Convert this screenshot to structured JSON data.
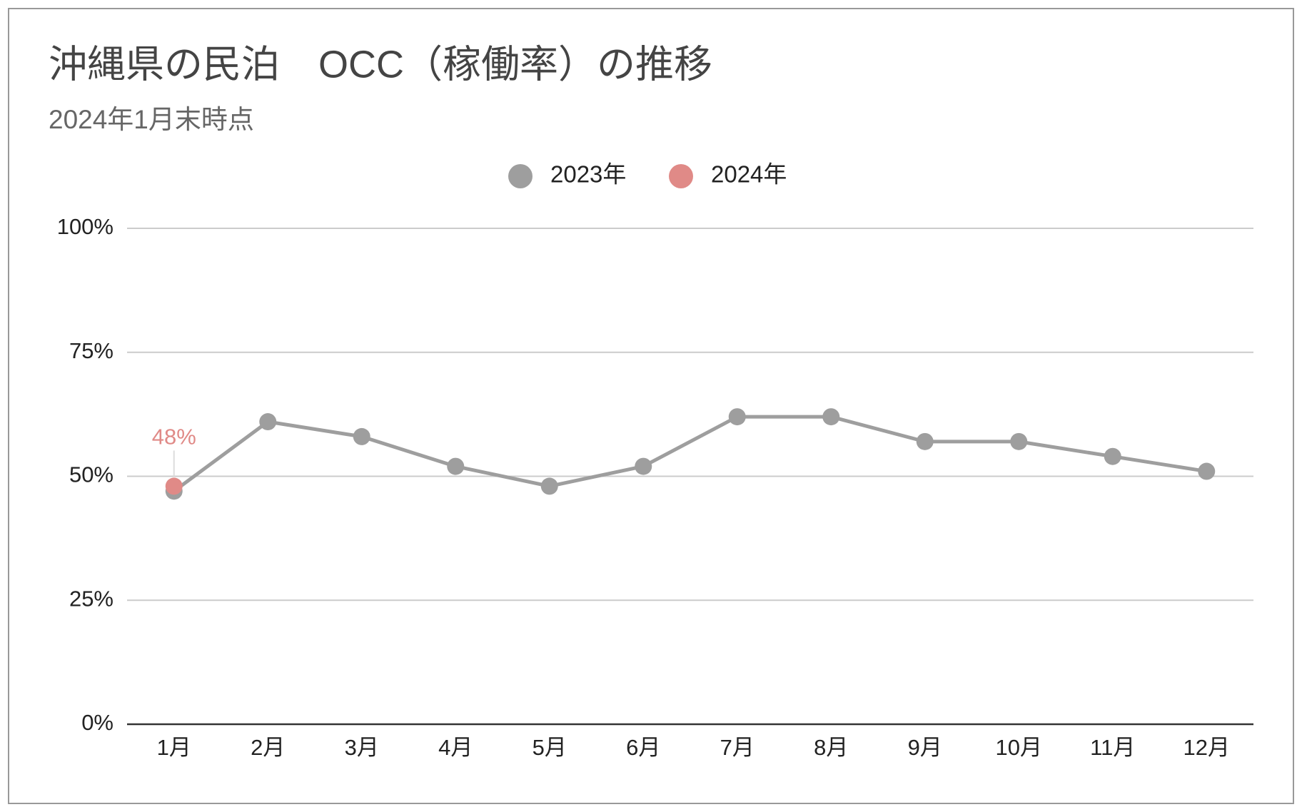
{
  "chart_data": {
    "type": "line",
    "title": "沖縄県の民泊　OCC（稼働率）の推移",
    "subtitle": "2024年1月末時点",
    "categories": [
      "1月",
      "2月",
      "3月",
      "4月",
      "5月",
      "6月",
      "7月",
      "8月",
      "9月",
      "10月",
      "11月",
      "12月"
    ],
    "series": [
      {
        "name": "2023年",
        "color": "#9e9e9e",
        "values": [
          47,
          61,
          58,
          52,
          48,
          52,
          62,
          62,
          57,
          57,
          54,
          51
        ]
      },
      {
        "name": "2024年",
        "color": "#e08a87",
        "values": [
          48,
          null,
          null,
          null,
          null,
          null,
          null,
          null,
          null,
          null,
          null,
          null
        ],
        "value_labels": [
          "48%",
          null,
          null,
          null,
          null,
          null,
          null,
          null,
          null,
          null,
          null,
          null
        ]
      }
    ],
    "ylim": [
      0,
      100
    ],
    "yticks": [
      {
        "value": 0,
        "label": "0%"
      },
      {
        "value": 25,
        "label": "25%"
      },
      {
        "value": 50,
        "label": "50%"
      },
      {
        "value": 75,
        "label": "75%"
      },
      {
        "value": 100,
        "label": "100%"
      }
    ],
    "grid": true,
    "legend": "top"
  }
}
